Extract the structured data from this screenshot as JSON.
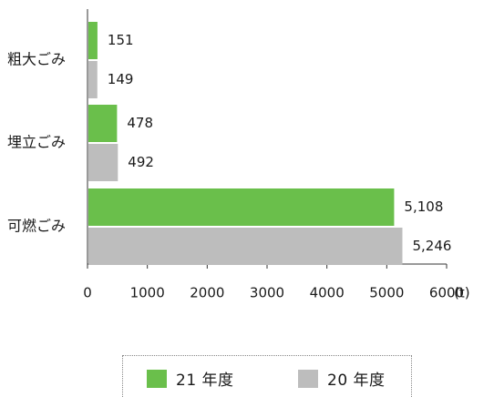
{
  "chart_data": {
    "type": "bar",
    "orientation": "horizontal",
    "categories": [
      "粗大ごみ",
      "埋立ごみ",
      "可燃ごみ"
    ],
    "series": [
      {
        "name": "21 年度",
        "values": [
          151,
          478,
          5108
        ],
        "labels": [
          "151",
          "478",
          "5,108"
        ],
        "color": "#6abf4b"
      },
      {
        "name": "20 年度",
        "values": [
          149,
          492,
          5246
        ],
        "labels": [
          "149",
          "492",
          "5,246"
        ],
        "color": "#bdbdbd"
      }
    ],
    "xlim": [
      0,
      6000
    ],
    "xticks": [
      "0",
      "1000",
      "2000",
      "3000",
      "4000",
      "5000",
      "6000"
    ],
    "unit": "(t)",
    "grid": false,
    "legend_position": "bottom"
  }
}
